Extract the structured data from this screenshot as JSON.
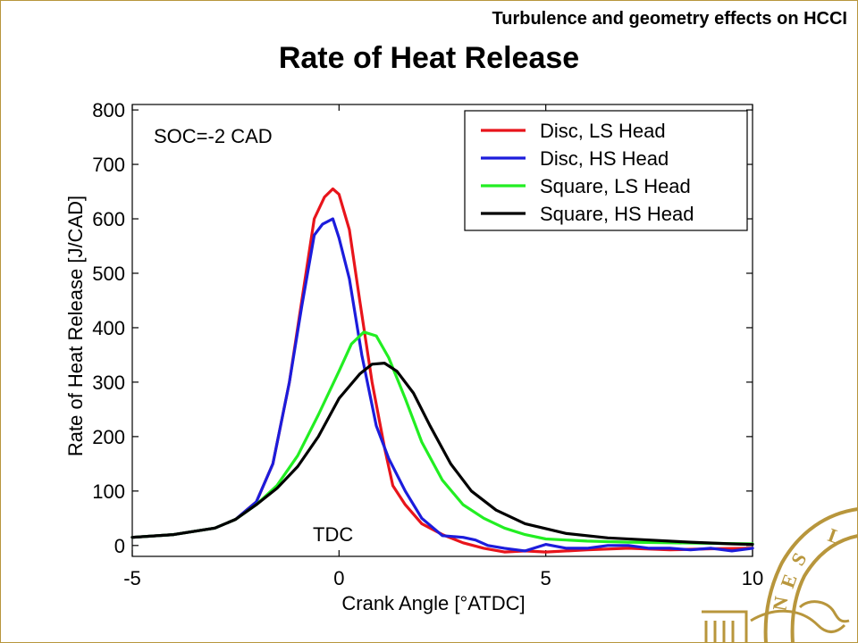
{
  "header": {
    "text": "Turbulence and geometry effects on HCCI"
  },
  "chart_data": {
    "type": "line",
    "title": "Rate of Heat Release",
    "xlabel": "Crank Angle [°ATDC]",
    "ylabel": "Rate of Heat Release [J/CAD]",
    "xlim": [
      -5,
      10
    ],
    "ylim": [
      -20,
      810
    ],
    "xticks": [
      -5,
      0,
      5,
      10
    ],
    "yticks": [
      0,
      100,
      200,
      300,
      400,
      500,
      600,
      700,
      800
    ],
    "grid": false,
    "legend_position": "top-right",
    "annotations": [
      {
        "text": "SOC=-2 CAD"
      },
      {
        "text": "TDC"
      }
    ],
    "series": [
      {
        "name": "Disc, LS Head",
        "color": "#e8141b",
        "x": [
          -5,
          -4,
          -3,
          -2.5,
          -2,
          -1.6,
          -1.2,
          -0.9,
          -0.6,
          -0.35,
          -0.15,
          0,
          0.25,
          0.5,
          0.8,
          1.1,
          1.3,
          1.6,
          2,
          2.5,
          3,
          3.5,
          4,
          4.5,
          5,
          6,
          7,
          8,
          9,
          10
        ],
        "y": [
          15,
          20,
          32,
          48,
          80,
          150,
          300,
          450,
          600,
          640,
          655,
          645,
          580,
          450,
          300,
          180,
          110,
          75,
          40,
          20,
          5,
          -5,
          -12,
          -10,
          -12,
          -8,
          -5,
          -8,
          -6,
          -5
        ]
      },
      {
        "name": "Disc, HS Head",
        "color": "#1c1cdc",
        "x": [
          -5,
          -4,
          -3,
          -2.5,
          -2,
          -1.6,
          -1.2,
          -0.9,
          -0.6,
          -0.4,
          -0.15,
          0,
          0.25,
          0.55,
          0.9,
          1.2,
          1.6,
          2,
          2.5,
          3,
          3.3,
          3.6,
          4,
          4.5,
          5,
          5.5,
          6,
          6.5,
          7,
          7.5,
          8,
          8.5,
          9,
          9.5,
          10
        ],
        "y": [
          15,
          20,
          32,
          48,
          80,
          150,
          300,
          440,
          570,
          590,
          600,
          565,
          490,
          350,
          220,
          160,
          100,
          50,
          18,
          15,
          10,
          0,
          -5,
          -10,
          2,
          -5,
          -5,
          0,
          0,
          -5,
          -5,
          -8,
          -5,
          -10,
          -5
        ]
      },
      {
        "name": "Square, LS Head",
        "color": "#22ee22",
        "x": [
          -5,
          -4,
          -3,
          -2.5,
          -2,
          -1.5,
          -1,
          -0.5,
          0,
          0.3,
          0.6,
          0.9,
          1.2,
          1.6,
          2,
          2.5,
          3,
          3.5,
          4,
          4.5,
          5,
          6,
          7,
          8,
          9,
          10
        ],
        "y": [
          15,
          20,
          32,
          48,
          75,
          110,
          165,
          240,
          320,
          370,
          392,
          385,
          345,
          270,
          190,
          120,
          75,
          50,
          32,
          20,
          12,
          8,
          6,
          5,
          4,
          3
        ]
      },
      {
        "name": "Square, HS Head",
        "color": "#000000",
        "x": [
          -5,
          -4,
          -3,
          -2.5,
          -2,
          -1.5,
          -1,
          -0.5,
          0,
          0.5,
          0.8,
          1.1,
          1.4,
          1.8,
          2.2,
          2.7,
          3.2,
          3.8,
          4.5,
          5.5,
          6.5,
          7.5,
          8.5,
          9.5,
          10
        ],
        "y": [
          15,
          20,
          32,
          48,
          75,
          105,
          145,
          200,
          270,
          315,
          333,
          335,
          320,
          280,
          220,
          150,
          100,
          65,
          40,
          22,
          14,
          10,
          6,
          3,
          2
        ]
      }
    ]
  }
}
